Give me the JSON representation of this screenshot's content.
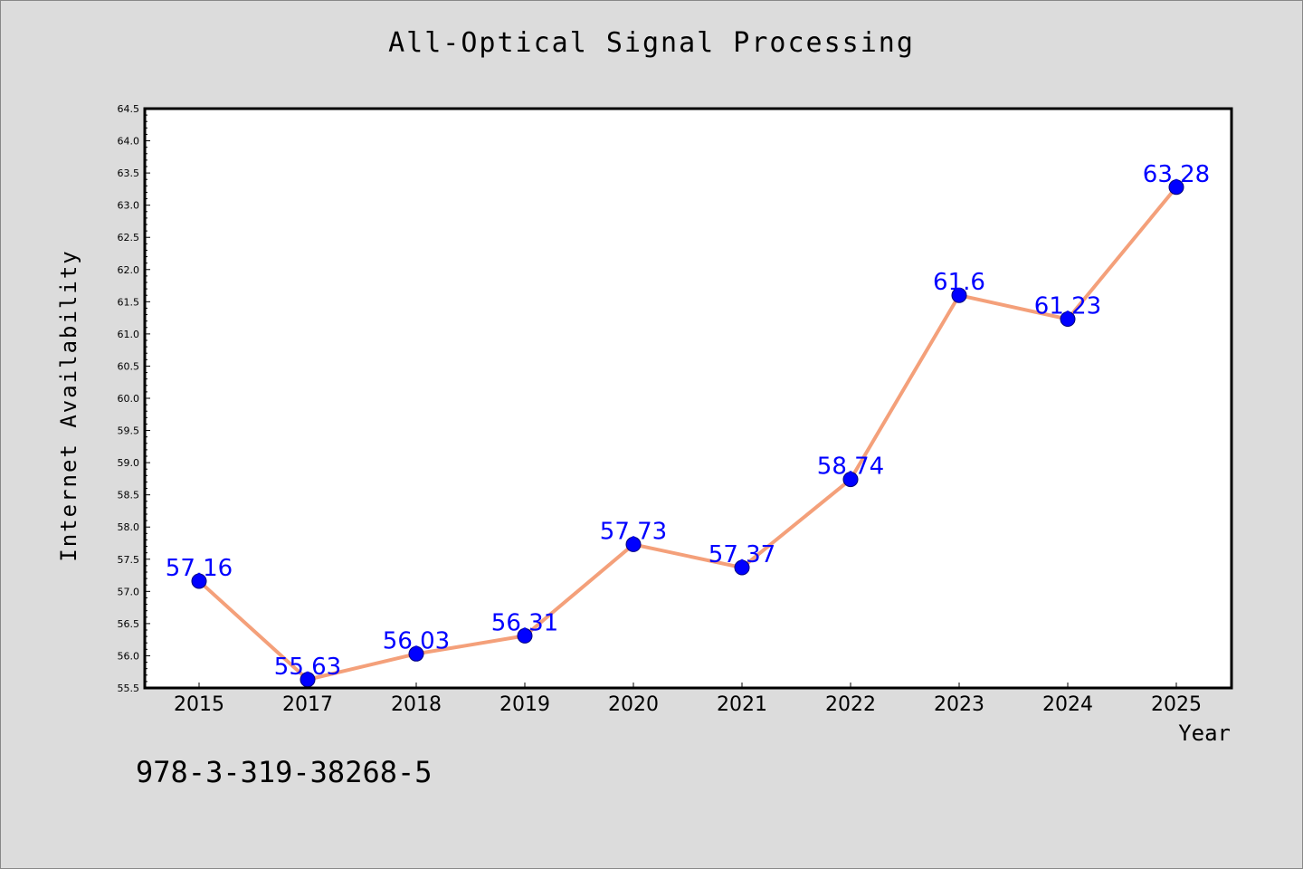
{
  "chart_data": {
    "type": "line",
    "title": "All-Optical Signal Processing",
    "xlabel": "Year",
    "ylabel": "Internet Availability",
    "categories": [
      "2015",
      "2017",
      "2018",
      "2019",
      "2020",
      "2021",
      "2022",
      "2023",
      "2024",
      "2025"
    ],
    "series": [
      {
        "values": [
          57.16,
          55.63,
          56.03,
          56.31,
          57.73,
          57.37,
          58.74,
          61.6,
          61.23,
          63.28
        ],
        "labels": [
          "57.16",
          "55.63",
          "56.03",
          "56.31",
          "57.73",
          "57.37",
          "58.74",
          "61.6",
          "61.23",
          "63.28"
        ]
      }
    ],
    "ylim": [
      55.5,
      64.5
    ],
    "yticks": [
      "55.5",
      "56.0",
      "56.5",
      "57.0",
      "57.5",
      "58.0",
      "58.5",
      "59.0",
      "59.5",
      "60.0",
      "60.5",
      "61.0",
      "61.5",
      "62.0",
      "62.5",
      "63.0",
      "63.5",
      "64.0",
      "64.5"
    ],
    "grid": false,
    "colors": {
      "line": "#f4a07a",
      "marker": "#0000ff",
      "label": "#0000ff",
      "plot_bg": "#ffffff",
      "page_bg": "#dcdcdc"
    }
  },
  "footer": {
    "isbn": "978-3-319-38268-5"
  }
}
